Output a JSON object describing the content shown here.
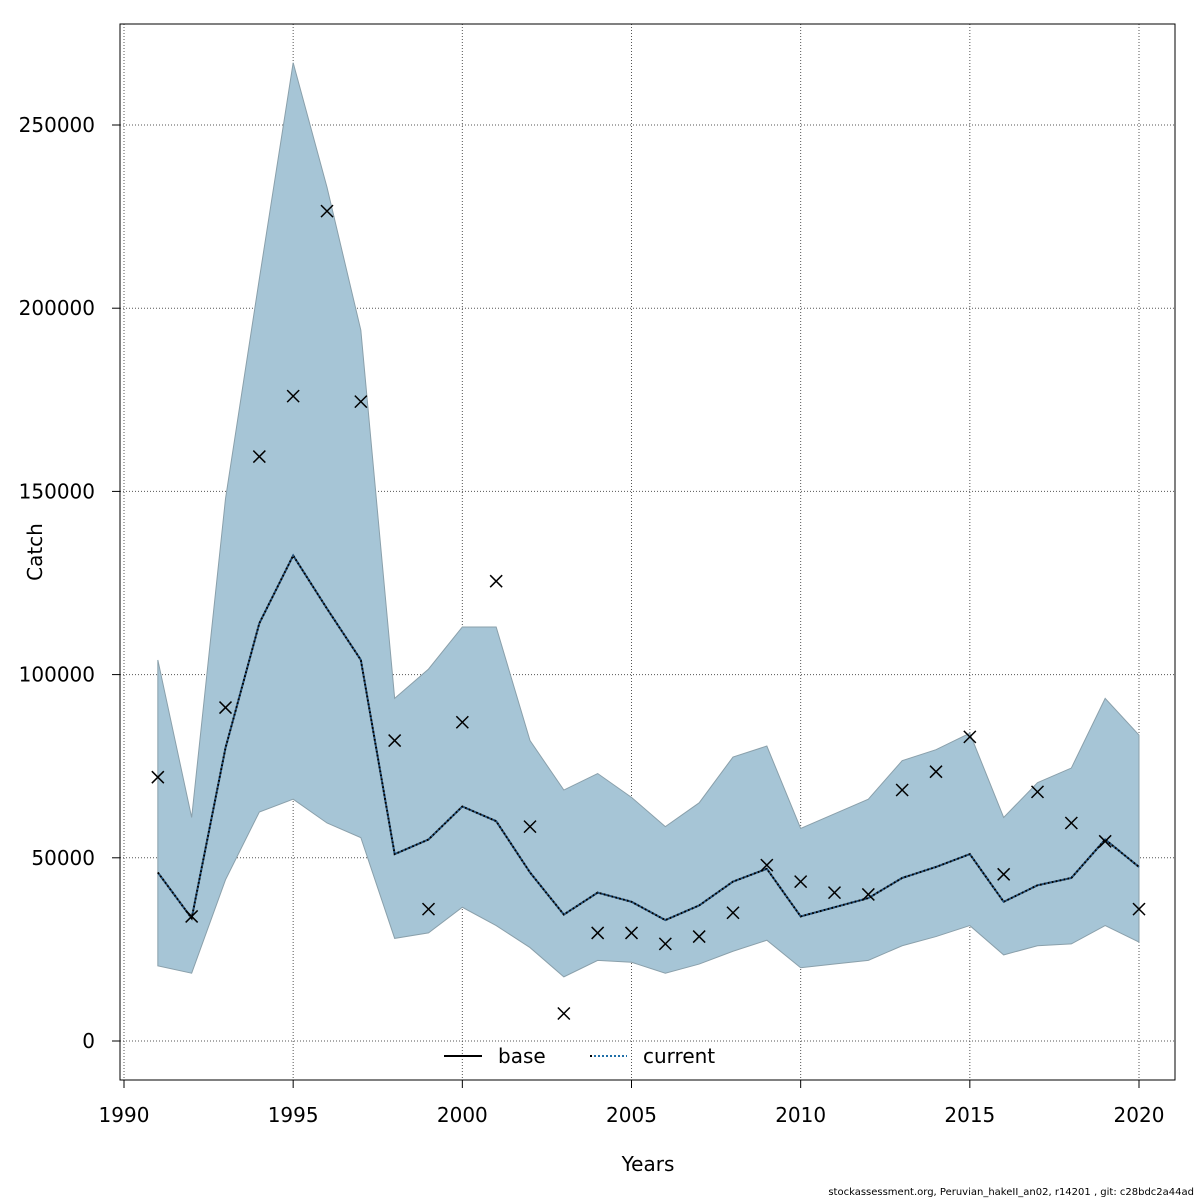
{
  "chart_data": {
    "type": "line",
    "title": "",
    "xlabel": "Years",
    "ylabel": "Catch",
    "xlim": [
      1990,
      2021
    ],
    "ylim": [
      0,
      275000
    ],
    "x_ticks": [
      "1990",
      "1995",
      "2000",
      "2005",
      "2010",
      "2015",
      "2020"
    ],
    "y_ticks": [
      "0",
      "50000",
      "100000",
      "150000",
      "200000",
      "250000"
    ],
    "grid": true,
    "legend": {
      "position": "bottom-center",
      "entries": [
        "base",
        "current"
      ]
    },
    "x": [
      1991,
      1992,
      1993,
      1994,
      1995,
      1996,
      1997,
      1998,
      1999,
      2000,
      2001,
      2002,
      2003,
      2004,
      2005,
      2006,
      2007,
      2008,
      2009,
      2010,
      2011,
      2012,
      2013,
      2014,
      2015,
      2016,
      2017,
      2018,
      2019,
      2020
    ],
    "observed": [
      72000,
      34000,
      91000,
      159500,
      176000,
      226500,
      174500,
      82000,
      36000,
      87000,
      125500,
      58500,
      7500,
      29500,
      29500,
      26500,
      28500,
      35000,
      48000,
      43500,
      40500,
      40000,
      68500,
      73500,
      83000,
      45500,
      68000,
      59500,
      54500,
      36000
    ],
    "series": [
      {
        "name": "base",
        "values": [
          46000,
          33500,
          80000,
          114000,
          132500,
          118000,
          104000,
          51000,
          55000,
          64000,
          60000,
          46000,
          34500,
          40500,
          38000,
          33000,
          37000,
          43500,
          47000,
          34000,
          36500,
          39000,
          44500,
          47500,
          51000,
          38000,
          42500,
          44500,
          55000,
          47500
        ]
      },
      {
        "name": "current",
        "values": [
          46000,
          33500,
          80000,
          114000,
          132500,
          118000,
          104000,
          51000,
          55000,
          64000,
          60000,
          46000,
          34500,
          40500,
          38000,
          33000,
          37000,
          43500,
          47000,
          34000,
          36500,
          39000,
          44500,
          47500,
          51000,
          38000,
          42500,
          44500,
          55000,
          47500
        ]
      }
    ],
    "upper": [
      104000,
      61000,
      148000,
      208000,
      267000,
      233000,
      194000,
      93500,
      101500,
      113000,
      113000,
      82000,
      68500,
      73000,
      66500,
      58500,
      65000,
      77500,
      80500,
      58000,
      62000,
      66000,
      76500,
      79500,
      84000,
      61000,
      70500,
      74500,
      93500,
      83500
    ],
    "lower": [
      20500,
      18500,
      44000,
      62500,
      66000,
      59500,
      55500,
      28000,
      29500,
      36500,
      31500,
      25500,
      17500,
      22000,
      21500,
      18500,
      21000,
      24500,
      27500,
      20000,
      21000,
      22000,
      26000,
      28500,
      31500,
      23500,
      26000,
      26500,
      31500,
      27000
    ],
    "colors": {
      "band": "#a6c5d6",
      "band_edge": "#8aa0ab",
      "current_line": "#1f4e79"
    }
  },
  "footer": "stockassessment.org, Peruvian_hakeII_an02, r14201 , git: c28bdc2a44ad"
}
